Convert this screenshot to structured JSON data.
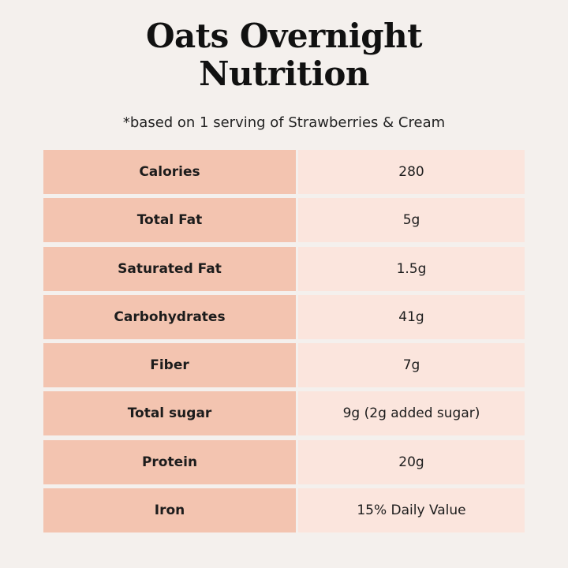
{
  "header": {
    "title": "Oats Overnight Nutrition",
    "subtitle": "*based on 1 serving of Strawberries & Cream"
  },
  "table": {
    "rows": [
      [
        "Calories",
        "280"
      ],
      [
        "Total Fat",
        "5g"
      ],
      [
        "Saturated Fat",
        "1.5g"
      ],
      [
        "Carbohydrates",
        "41g"
      ],
      [
        "Fiber",
        "7g"
      ],
      [
        "Total sugar",
        "9g (2g added sugar)"
      ],
      [
        "Protein",
        "20g"
      ],
      [
        "Iron",
        "15% Daily Value"
      ]
    ]
  }
}
